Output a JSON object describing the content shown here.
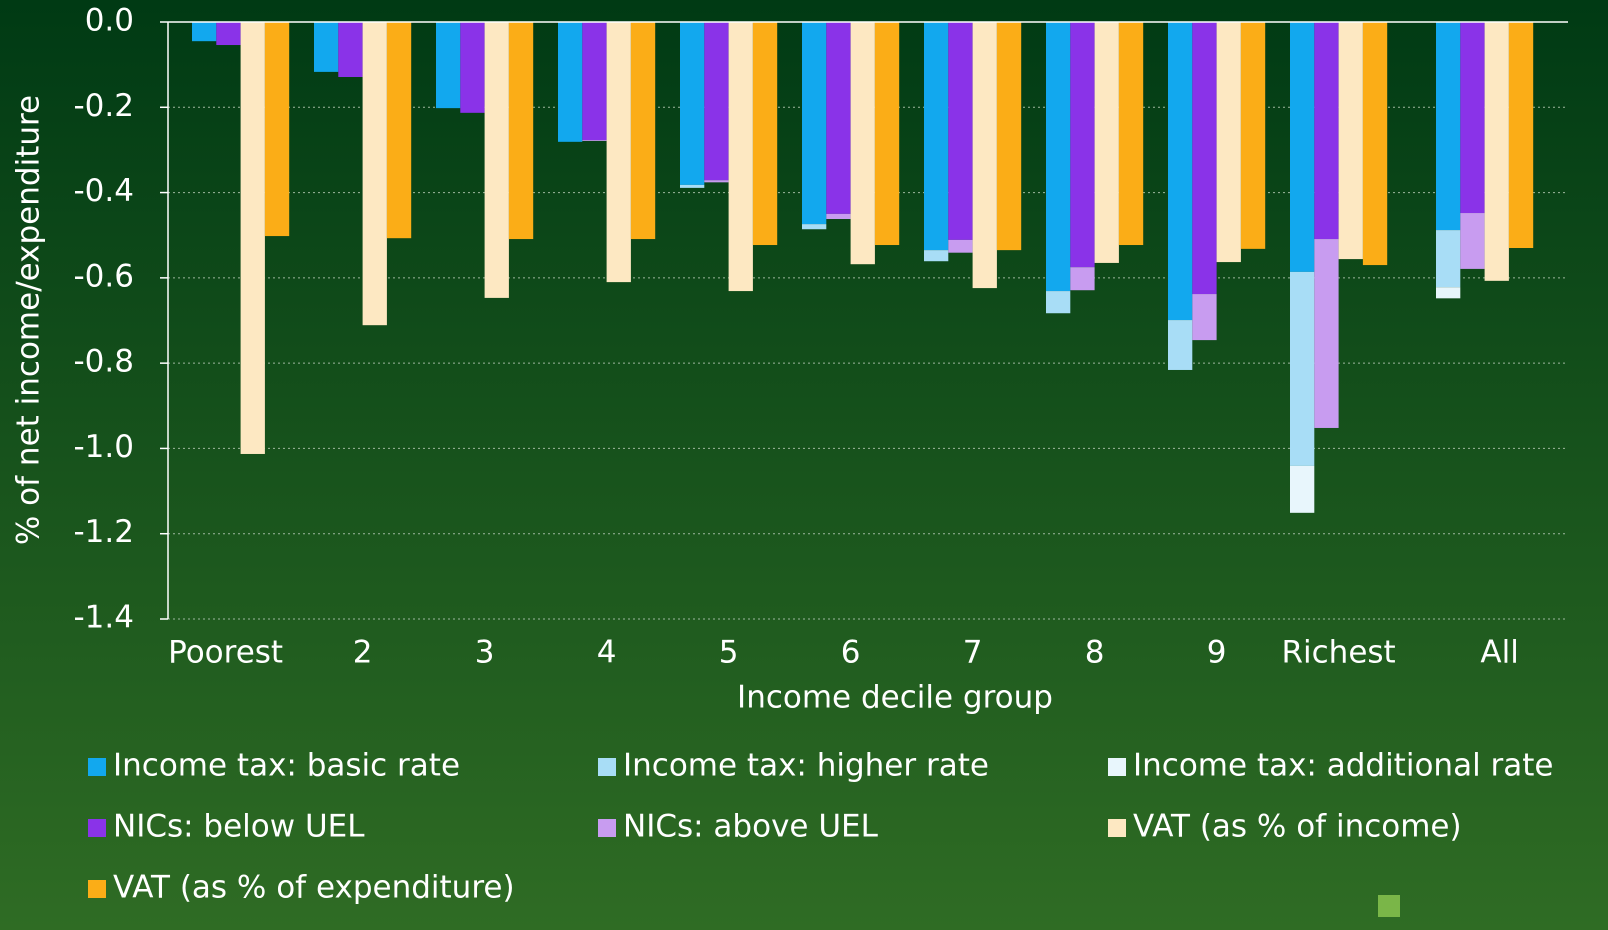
{
  "chart_data": {
    "type": "bar",
    "x_label": "Income decile group",
    "y_label": "% of net income/expenditure",
    "categories": [
      "Poorest",
      "2",
      "3",
      "4",
      "5",
      "6",
      "7",
      "8",
      "9",
      "Richest",
      "All"
    ],
    "series": [
      {
        "name": "Income tax: basic rate",
        "color": "#12a8ee",
        "values": [
          -0.045,
          -0.117,
          -0.202,
          -0.281,
          -0.382,
          -0.474,
          -0.535,
          -0.631,
          -0.699,
          -0.586,
          -0.488
        ]
      },
      {
        "name": "Income tax: higher rate",
        "color": "#a8ddf6",
        "values": [
          0,
          0,
          0,
          0,
          -0.007,
          -0.012,
          -0.026,
          -0.052,
          -0.117,
          -0.455,
          -0.134
        ]
      },
      {
        "name": "Income tax: additional rate",
        "color": "#e8f6fc",
        "values": [
          0,
          0,
          0,
          0,
          0,
          0,
          0,
          0,
          0,
          -0.11,
          -0.026
        ]
      },
      {
        "name": "NICs: below UEL",
        "color": "#8a33e8",
        "values": [
          -0.054,
          -0.129,
          -0.213,
          -0.277,
          -0.371,
          -0.45,
          -0.511,
          -0.575,
          -0.638,
          -0.509,
          -0.448
        ]
      },
      {
        "name": "NICs: above UEL",
        "color": "#c89cf0",
        "values": [
          0,
          0,
          0,
          -0.002,
          -0.005,
          -0.012,
          -0.03,
          -0.054,
          -0.108,
          -0.443,
          -0.131
        ]
      },
      {
        "name": "VAT (as % of income)",
        "color": "#fde8c2",
        "values": [
          -1.013,
          -0.711,
          -0.647,
          -0.61,
          -0.631,
          -0.568,
          -0.624,
          -0.565,
          -0.563,
          -0.556,
          -0.607
        ]
      },
      {
        "name": "VAT (as % of expenditure)",
        "color": "#fbad17",
        "values": [
          -0.502,
          -0.507,
          -0.509,
          -0.509,
          -0.523,
          -0.523,
          -0.535,
          -0.523,
          -0.532,
          -0.57,
          -0.53
        ]
      }
    ],
    "ylim": [
      -1.4,
      0
    ],
    "yticks": [
      {
        "value": 0,
        "label": "0.0"
      },
      {
        "value": -0.2,
        "label": "-0.2"
      },
      {
        "value": -0.4,
        "label": "-0.4"
      },
      {
        "value": -0.6,
        "label": "-0.6"
      },
      {
        "value": -0.8,
        "label": "-0.8"
      },
      {
        "value": -1.0,
        "label": "-1.0"
      },
      {
        "value": -1.2,
        "label": "-1.2"
      },
      {
        "value": -1.4,
        "label": "-1.4"
      }
    ],
    "grid": true
  }
}
